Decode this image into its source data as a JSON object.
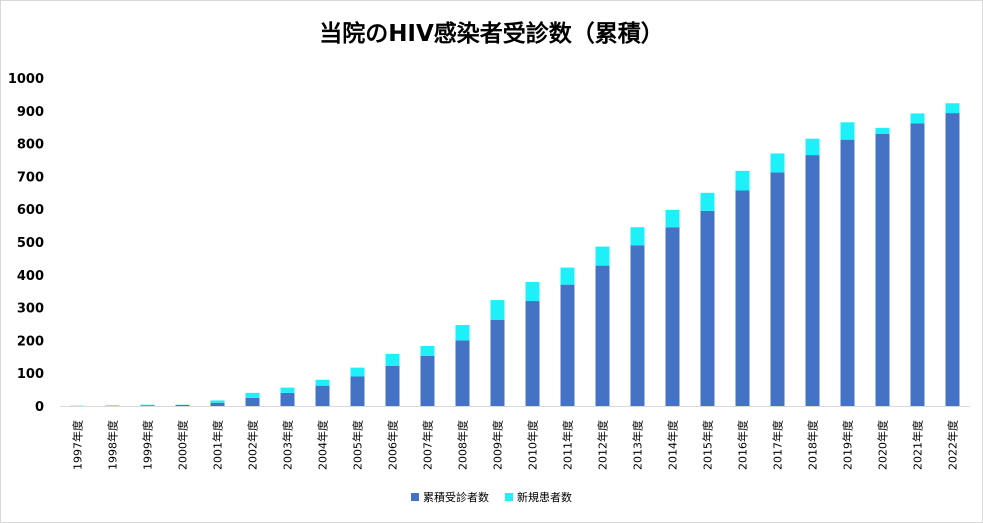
{
  "chart_data": {
    "type": "bar",
    "stacked": true,
    "title": "当院のHIV感染者受診数（累積）",
    "xlabel": "",
    "ylabel": "",
    "ylim": [
      0,
      1000
    ],
    "yticks": [
      0,
      100,
      200,
      300,
      400,
      500,
      600,
      700,
      800,
      900,
      1000
    ],
    "grid": false,
    "legend_position": "bottom",
    "categories": [
      "1997年度",
      "1998年度",
      "1999年度",
      "2000年度",
      "2001年度",
      "2002年度",
      "2003年度",
      "2004年度",
      "2005年度",
      "2006年度",
      "2007年度",
      "2008年度",
      "2009年度",
      "2010年度",
      "2011年度",
      "2012年度",
      "2013年度",
      "2014年度",
      "2015年度",
      "2016年度",
      "2017年度",
      "2018年度",
      "2019年度",
      "2020年度",
      "2021年度",
      "2022年度"
    ],
    "series": [
      {
        "name": "累積受診者数",
        "color": "#4472C4",
        "values": [
          0,
          1,
          2,
          3,
          10,
          25,
          40,
          62,
          90,
          122,
          153,
          200,
          263,
          320,
          370,
          428,
          490,
          545,
          595,
          657,
          712,
          765,
          812,
          830,
          862,
          893
        ]
      },
      {
        "name": "新規患者数",
        "color": "#1EF0FA",
        "values": [
          1,
          1,
          2,
          1,
          7,
          15,
          16,
          18,
          27,
          37,
          30,
          47,
          60,
          58,
          52,
          58,
          55,
          53,
          55,
          60,
          58,
          50,
          53,
          18,
          30,
          30
        ]
      }
    ]
  }
}
